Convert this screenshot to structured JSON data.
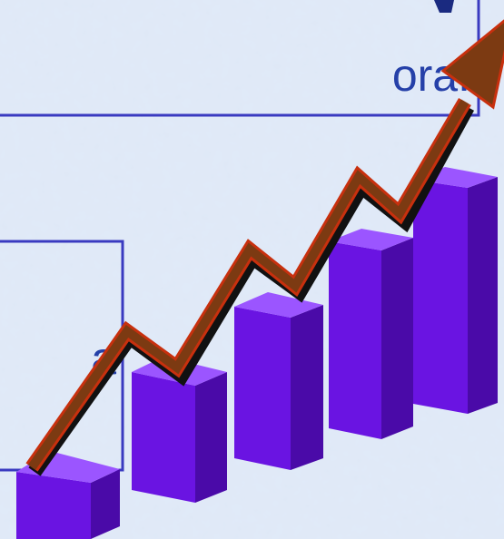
{
  "boxes": [
    {
      "text": "ora."
    },
    {
      "text": "a"
    }
  ]
}
